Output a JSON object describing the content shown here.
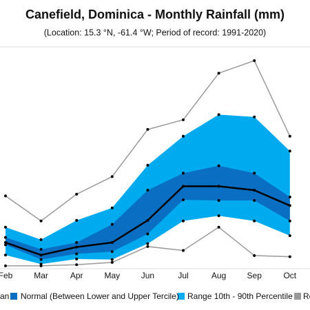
{
  "chart_data": {
    "type": "band",
    "title": "Canefield, Dominica - Monthly Rainfall (mm)",
    "subtitle": "(Location: 15.3 °N, -61.4 °W; Period of record: 1991-2020)",
    "categories": [
      "Feb",
      "Mar",
      "Apr",
      "May",
      "Jun",
      "Jul",
      "Aug",
      "Sep",
      "Oct"
    ],
    "ylim": [
      0,
      400
    ],
    "series": [
      {
        "name": "Re",
        "color": "#999999",
        "kind": "lines",
        "low": [
          5,
          5,
          7,
          11,
          39,
          32,
          73,
          23,
          21
        ],
        "high": [
          128,
          84,
          131,
          162,
          245,
          262,
          344,
          366,
          233
        ]
      },
      {
        "name": "Range 10th - 90th Percentile",
        "color": "#00aaee",
        "kind": "band",
        "low": [
          24,
          8,
          17,
          16,
          44,
          84,
          93,
          84,
          58
        ],
        "high": [
          73,
          51,
          85,
          107,
          182,
          233,
          271,
          267,
          207
        ]
      },
      {
        "name": "Normal (Between Lower and Upper Tercile)",
        "color": "#0a6fc2",
        "kind": "band",
        "low": [
          42,
          16,
          26,
          30,
          61,
          121,
          120,
          120,
          84
        ],
        "high": [
          55,
          34,
          46,
          78,
          138,
          168,
          181,
          168,
          126
        ]
      },
      {
        "name": "an",
        "color": "#000000",
        "kind": "line",
        "values": [
          46,
          24,
          38,
          46,
          85,
          145,
          145,
          138,
          111
        ]
      }
    ]
  }
}
